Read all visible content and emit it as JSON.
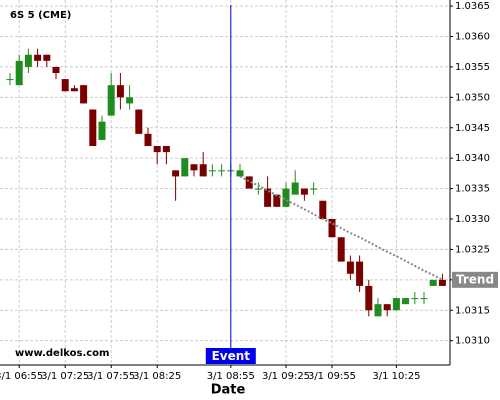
{
  "chart_data": {
    "type": "candlestick",
    "title": "6S 5 (CME)",
    "watermark": "www.delkos.com",
    "x_label": "Date",
    "categories": [
      null,
      "3/1 06:55",
      null,
      null,
      null,
      null,
      "3/1 07:25",
      null,
      null,
      null,
      null,
      "3/1 07:55",
      null,
      null,
      null,
      null,
      "3/1 08:25",
      null,
      null,
      null,
      null,
      null,
      null,
      null,
      "3/1 08:55",
      null,
      null,
      null,
      null,
      null,
      "3/1 09:25",
      null,
      null,
      null,
      null,
      "3/1 09:55",
      null,
      null,
      null,
      null,
      null,
      null,
      "3/1 10:25",
      null,
      null,
      null,
      null,
      null
    ],
    "open": [
      1.0353,
      1.0352,
      1.0355,
      1.0357,
      1.0357,
      1.0355,
      1.0353,
      1.03515,
      1.0352,
      1.0348,
      1.0343,
      1.0347,
      1.0352,
      1.0349,
      1.0348,
      1.0344,
      1.0342,
      1.0342,
      1.0338,
      1.0337,
      1.0339,
      1.0339,
      1.0338,
      1.0338,
      1.0338,
      1.0337,
      1.0337,
      1.0335,
      1.0335,
      1.0334,
      1.0332,
      1.0334,
      1.0335,
      1.0335,
      1.0333,
      1.033,
      1.0327,
      1.0323,
      1.0323,
      1.0319,
      1.0314,
      1.0316,
      1.0315,
      1.0316,
      1.0317,
      1.0317,
      1.0319,
      1.032
    ],
    "high": [
      1.0354,
      1.0357,
      1.0358,
      1.0358,
      1.0357,
      1.0355,
      1.0353,
      1.0352,
      1.0352,
      1.0348,
      1.0347,
      1.0354,
      1.0354,
      1.0352,
      1.0348,
      1.0345,
      1.0342,
      1.0342,
      1.0338,
      1.034,
      1.0339,
      1.0341,
      1.0339,
      1.0339,
      1.0339,
      1.0339,
      1.0337,
      1.0336,
      1.0337,
      1.0334,
      1.0336,
      1.0338,
      1.0335,
      1.0336,
      1.0333,
      1.033,
      1.0327,
      1.0324,
      1.0324,
      1.032,
      1.0317,
      1.0316,
      1.0317,
      1.0317,
      1.0318,
      1.0318,
      1.032,
      1.0321
    ],
    "low": [
      1.0352,
      1.0352,
      1.0354,
      1.0355,
      1.0355,
      1.0353,
      1.0351,
      1.0351,
      1.0349,
      1.0342,
      1.0343,
      1.0347,
      1.0348,
      1.0348,
      1.0344,
      1.0342,
      1.0339,
      1.0339,
      1.0333,
      1.0337,
      1.0337,
      1.0337,
      1.0337,
      1.0337,
      1.0337,
      1.0337,
      1.0335,
      1.0334,
      1.0332,
      1.0332,
      1.0332,
      1.0334,
      1.0333,
      1.0334,
      1.033,
      1.0327,
      1.0323,
      1.032,
      1.0318,
      1.0314,
      1.0314,
      1.0314,
      1.0315,
      1.0316,
      1.0316,
      1.0316,
      1.0319,
      1.0319
    ],
    "close": [
      1.0353,
      1.0356,
      1.0357,
      1.0356,
      1.0356,
      1.0354,
      1.0351,
      1.0351,
      1.0349,
      1.0342,
      1.0346,
      1.0352,
      1.035,
      1.035,
      1.0344,
      1.0342,
      1.0341,
      1.0341,
      1.0337,
      1.034,
      1.0338,
      1.0337,
      1.0338,
      1.0338,
      1.0338,
      1.0338,
      1.0335,
      1.0335,
      1.0332,
      1.0332,
      1.0335,
      1.0336,
      1.0334,
      1.0335,
      1.033,
      1.0327,
      1.0323,
      1.0321,
      1.0319,
      1.0315,
      1.0316,
      1.0315,
      1.0317,
      1.0317,
      1.0317,
      1.0317,
      1.032,
      1.0319
    ],
    "up_color": "#1e8c1e",
    "down_color": "#7a0000",
    "trend": {
      "name": "Trend",
      "color": "#888888",
      "values": [
        null,
        null,
        null,
        null,
        null,
        null,
        null,
        null,
        null,
        null,
        null,
        null,
        null,
        null,
        null,
        null,
        null,
        null,
        null,
        null,
        null,
        null,
        null,
        null,
        null,
        1.0337,
        1.03362,
        1.03355,
        1.03347,
        1.03339,
        1.03331,
        1.03324,
        1.03316,
        1.03308,
        1.033,
        1.03293,
        1.03285,
        1.03277,
        1.0327,
        1.03262,
        1.03254,
        1.03246,
        1.03239,
        1.03231,
        1.03223,
        1.03215,
        1.03208,
        1.032
      ]
    },
    "event": {
      "label": "Event",
      "x": "3/1 08:55",
      "color": "#0000ee"
    },
    "ylim": [
      1.0306,
      1.0366
    ],
    "yticks": [
      {
        "value": 1.031,
        "label": "1.0310"
      },
      {
        "value": 1.0315,
        "label": "1.0315"
      },
      {
        "value": 1.032,
        "label": "1.0320"
      },
      {
        "value": 1.0325,
        "label": "1.0325"
      },
      {
        "value": 1.033,
        "label": "1.0330"
      },
      {
        "value": 1.0335,
        "label": "1.0335"
      },
      {
        "value": 1.034,
        "label": "1.0340"
      },
      {
        "value": 1.0345,
        "label": "1.0345"
      },
      {
        "value": 1.035,
        "label": "1.0350"
      },
      {
        "value": 1.0355,
        "label": "1.0355"
      },
      {
        "value": 1.036,
        "label": "1.0360"
      },
      {
        "value": 1.0365,
        "label": "1.0365"
      }
    ],
    "grid": true
  }
}
